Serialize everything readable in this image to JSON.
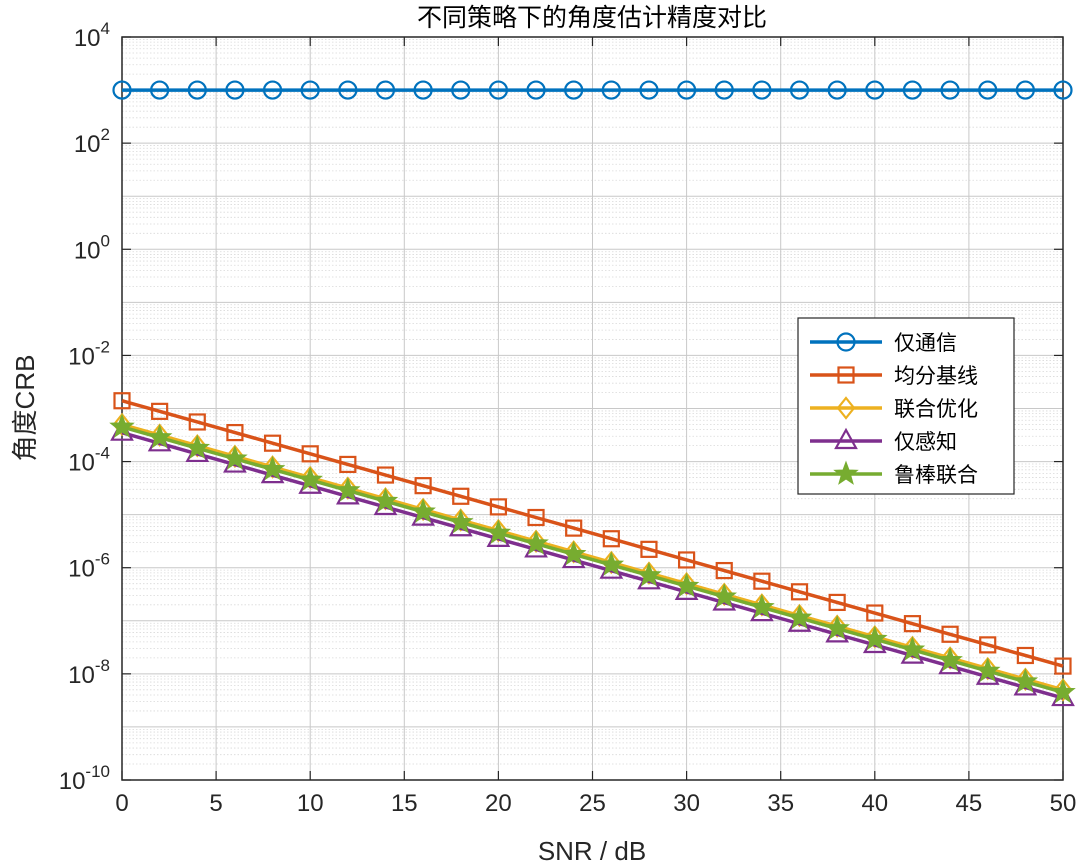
{
  "chart_data": {
    "type": "line",
    "title": "不同策略下的角度估计精度对比",
    "xlabel": "SNR / dB",
    "ylabel": "角度CRB",
    "xlim": [
      0,
      50
    ],
    "ylim": [
      1e-10,
      10000
    ],
    "yscale": "log",
    "grid": true,
    "minor_grid": true,
    "legend_position": "right",
    "x_ticks": [
      0,
      5,
      10,
      15,
      20,
      25,
      30,
      35,
      40,
      45,
      50
    ],
    "y_tick_exponents": [
      -10,
      -8,
      -6,
      -4,
      -2,
      0,
      2,
      4
    ],
    "y_tick_base": "10",
    "x": [
      0,
      2,
      4,
      6,
      8,
      10,
      12,
      14,
      16,
      18,
      20,
      22,
      24,
      26,
      28,
      30,
      32,
      34,
      36,
      38,
      40,
      42,
      44,
      46,
      48,
      50
    ],
    "series": [
      {
        "name": "仅通信",
        "color": "#0072BD",
        "marker": "circle",
        "y_at_0": 1000,
        "y_at_50": 1000
      },
      {
        "name": "均分基线",
        "color": "#D95319",
        "marker": "square",
        "y_at_0": 0.0014,
        "y_at_50": 1.4e-08
      },
      {
        "name": "联合优化",
        "color": "#EDB120",
        "marker": "diamond",
        "y_at_0": 0.0005,
        "y_at_50": 5e-09
      },
      {
        "name": "仅感知",
        "color": "#7E2F8E",
        "marker": "triangle",
        "y_at_0": 0.00035,
        "y_at_50": 3.5e-09
      },
      {
        "name": "鲁棒联合",
        "color": "#77AC30",
        "marker": "star",
        "y_at_0": 0.00045,
        "y_at_50": 4.5e-09
      }
    ]
  }
}
